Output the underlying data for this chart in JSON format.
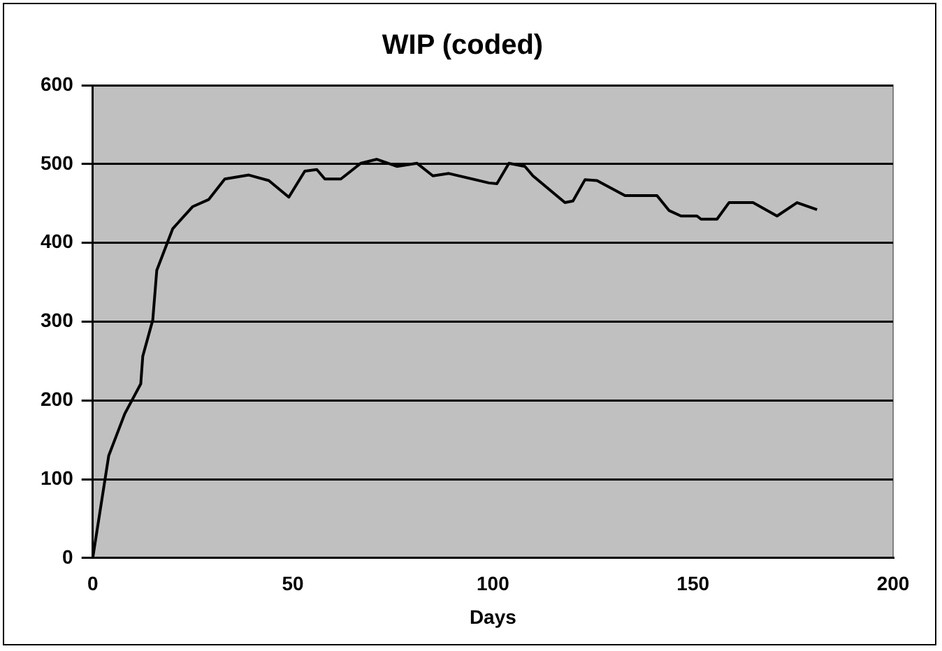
{
  "chart_data": {
    "type": "line",
    "title": "WIP (coded)",
    "xlabel": "Days",
    "xlim": [
      0,
      200
    ],
    "xticks": [
      0,
      50,
      100,
      150,
      200
    ],
    "ylim": [
      0,
      600
    ],
    "yticks": [
      0,
      100,
      200,
      300,
      400,
      500,
      600
    ],
    "grid": "y",
    "legend": false,
    "marker": "none",
    "line_style": "solid",
    "series": [
      {
        "color": "#000000",
        "x": [
          0,
          4,
          8,
          12,
          12.5,
          15,
          16,
          20,
          25,
          29,
          33,
          39,
          44,
          49,
          53,
          56,
          58,
          62,
          67,
          71,
          76,
          81,
          85,
          89,
          99,
          101,
          104,
          108,
          110,
          118,
          120,
          123,
          126,
          133,
          141,
          144,
          147,
          151,
          152,
          156,
          159,
          165,
          171,
          176,
          181
        ],
        "values": [
          0,
          130,
          183,
          221,
          256,
          302,
          365,
          418,
          446,
          455,
          481,
          486,
          479,
          458,
          491,
          493,
          481,
          481,
          501,
          506,
          497,
          501,
          485,
          488,
          476,
          475,
          501,
          497,
          485,
          451,
          453,
          480,
          479,
          460,
          460,
          441,
          434,
          434,
          430,
          430,
          451,
          451,
          434,
          451,
          442
        ]
      }
    ]
  }
}
